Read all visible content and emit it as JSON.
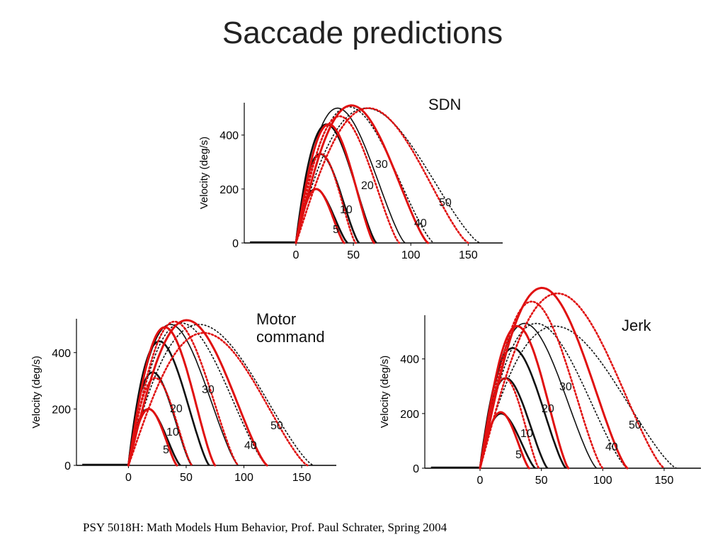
{
  "slide": {
    "title": "Saccade predictions",
    "footer": "PSY 5018H: Math Models Hum Behavior, Prof. Paul Schrater, Spring 2004"
  },
  "colors": {
    "observed": "#111111",
    "predicted": "#e01010"
  },
  "chart_data": [
    {
      "type": "line",
      "panel_label": [
        "SDN"
      ],
      "ylabel": "Velocity (deg/s)",
      "xlim": [
        -45,
        180
      ],
      "ylim": [
        0,
        520
      ],
      "x_ticks": [
        0,
        50,
        100,
        150
      ],
      "x_tick_labels": [
        "0",
        "50",
        "100",
        "150"
      ],
      "y_ticks": [
        0,
        200,
        400
      ],
      "y_tick_labels": [
        "0",
        "200",
        "400"
      ],
      "legend": "none",
      "curve_labels": [
        "5",
        "10",
        "20",
        "30",
        "40",
        "50"
      ],
      "observed": [
        {
          "amplitude": 5,
          "peak": 200,
          "onset": 0,
          "offset": 45
        },
        {
          "amplitude": 10,
          "peak": 330,
          "onset": 0,
          "offset": 55
        },
        {
          "amplitude": 20,
          "peak": 440,
          "onset": 0,
          "offset": 70
        },
        {
          "amplitude": 30,
          "peak": 500,
          "onset": 0,
          "offset": 95
        },
        {
          "amplitude": 40,
          "peak": 505,
          "onset": 0,
          "offset": 120
        },
        {
          "amplitude": 50,
          "peak": 500,
          "onset": 0,
          "offset": 160
        }
      ],
      "predicted": [
        {
          "amplitude": 5,
          "peak": 200,
          "onset": 0,
          "offset": 42,
          "style": "solid"
        },
        {
          "amplitude": 10,
          "peak": 330,
          "onset": 0,
          "offset": 52,
          "style": "dotted"
        },
        {
          "amplitude": 20,
          "peak": 440,
          "onset": 0,
          "offset": 68,
          "style": "solid"
        },
        {
          "amplitude": 30,
          "peak": 470,
          "onset": 0,
          "offset": 90,
          "style": "dotted"
        },
        {
          "amplitude": 40,
          "peak": 510,
          "onset": 0,
          "offset": 115,
          "style": "solid"
        },
        {
          "amplitude": 50,
          "peak": 500,
          "onset": 0,
          "offset": 150,
          "style": "dotted"
        }
      ]
    },
    {
      "type": "line",
      "panel_label": [
        "Motor",
        "command"
      ],
      "ylabel": "Velocity (deg/s)",
      "xlim": [
        -45,
        180
      ],
      "ylim": [
        0,
        520
      ],
      "x_ticks": [
        0,
        50,
        100,
        150
      ],
      "x_tick_labels": [
        "0",
        "50",
        "100",
        "150"
      ],
      "y_ticks": [
        0,
        200,
        400
      ],
      "y_tick_labels": [
        "0",
        "200",
        "400"
      ],
      "legend": "none",
      "curve_labels": [
        "5",
        "10",
        "20",
        "30",
        "40",
        "50"
      ],
      "observed": [
        {
          "amplitude": 5,
          "peak": 200,
          "onset": 0,
          "offset": 45
        },
        {
          "amplitude": 10,
          "peak": 330,
          "onset": 0,
          "offset": 55
        },
        {
          "amplitude": 20,
          "peak": 440,
          "onset": 0,
          "offset": 70
        },
        {
          "amplitude": 30,
          "peak": 500,
          "onset": 0,
          "offset": 95
        },
        {
          "amplitude": 40,
          "peak": 505,
          "onset": 0,
          "offset": 120
        },
        {
          "amplitude": 50,
          "peak": 500,
          "onset": 0,
          "offset": 160
        }
      ],
      "predicted": [
        {
          "amplitude": 5,
          "peak": 200,
          "onset": 0,
          "offset": 42,
          "style": "solid"
        },
        {
          "amplitude": 10,
          "peak": 310,
          "onset": 0,
          "offset": 55,
          "style": "dotted"
        },
        {
          "amplitude": 20,
          "peak": 490,
          "onset": 0,
          "offset": 75,
          "style": "solid"
        },
        {
          "amplitude": 30,
          "peak": 510,
          "onset": 0,
          "offset": 95,
          "style": "dotted"
        },
        {
          "amplitude": 40,
          "peak": 515,
          "onset": 0,
          "offset": 120,
          "style": "solid"
        },
        {
          "amplitude": 50,
          "peak": 470,
          "onset": 0,
          "offset": 155,
          "style": "dotted"
        }
      ]
    },
    {
      "type": "line",
      "panel_label": [
        "Jerk"
      ],
      "ylabel": "Velocity (deg/s)",
      "xlim": [
        -45,
        180
      ],
      "ylim": [
        0,
        560
      ],
      "x_ticks": [
        0,
        50,
        100,
        150
      ],
      "x_tick_labels": [
        "0",
        "50",
        "100",
        "150"
      ],
      "y_ticks": [
        0,
        200,
        400
      ],
      "y_tick_labels": [
        "0",
        "200",
        "400"
      ],
      "legend": "none",
      "curve_labels": [
        "5",
        "10",
        "20",
        "30",
        "40",
        "50"
      ],
      "observed": [
        {
          "amplitude": 5,
          "peak": 200,
          "onset": 0,
          "offset": 45
        },
        {
          "amplitude": 10,
          "peak": 330,
          "onset": 0,
          "offset": 55
        },
        {
          "amplitude": 20,
          "peak": 440,
          "onset": 0,
          "offset": 70
        },
        {
          "amplitude": 30,
          "peak": 530,
          "onset": 0,
          "offset": 95
        },
        {
          "amplitude": 40,
          "peak": 530,
          "onset": 0,
          "offset": 120
        },
        {
          "amplitude": 50,
          "peak": 520,
          "onset": 0,
          "offset": 160
        }
      ],
      "predicted": [
        {
          "amplitude": 5,
          "peak": 205,
          "onset": 0,
          "offset": 40,
          "style": "solid"
        },
        {
          "amplitude": 10,
          "peak": 330,
          "onset": 0,
          "offset": 48,
          "style": "dotted"
        },
        {
          "amplitude": 20,
          "peak": 520,
          "onset": 0,
          "offset": 72,
          "style": "solid"
        },
        {
          "amplitude": 30,
          "peak": 610,
          "onset": 0,
          "offset": 100,
          "style": "dotted"
        },
        {
          "amplitude": 40,
          "peak": 660,
          "onset": 0,
          "offset": 120,
          "style": "solid"
        },
        {
          "amplitude": 50,
          "peak": 640,
          "onset": 0,
          "offset": 150,
          "style": "dotted"
        }
      ]
    }
  ]
}
